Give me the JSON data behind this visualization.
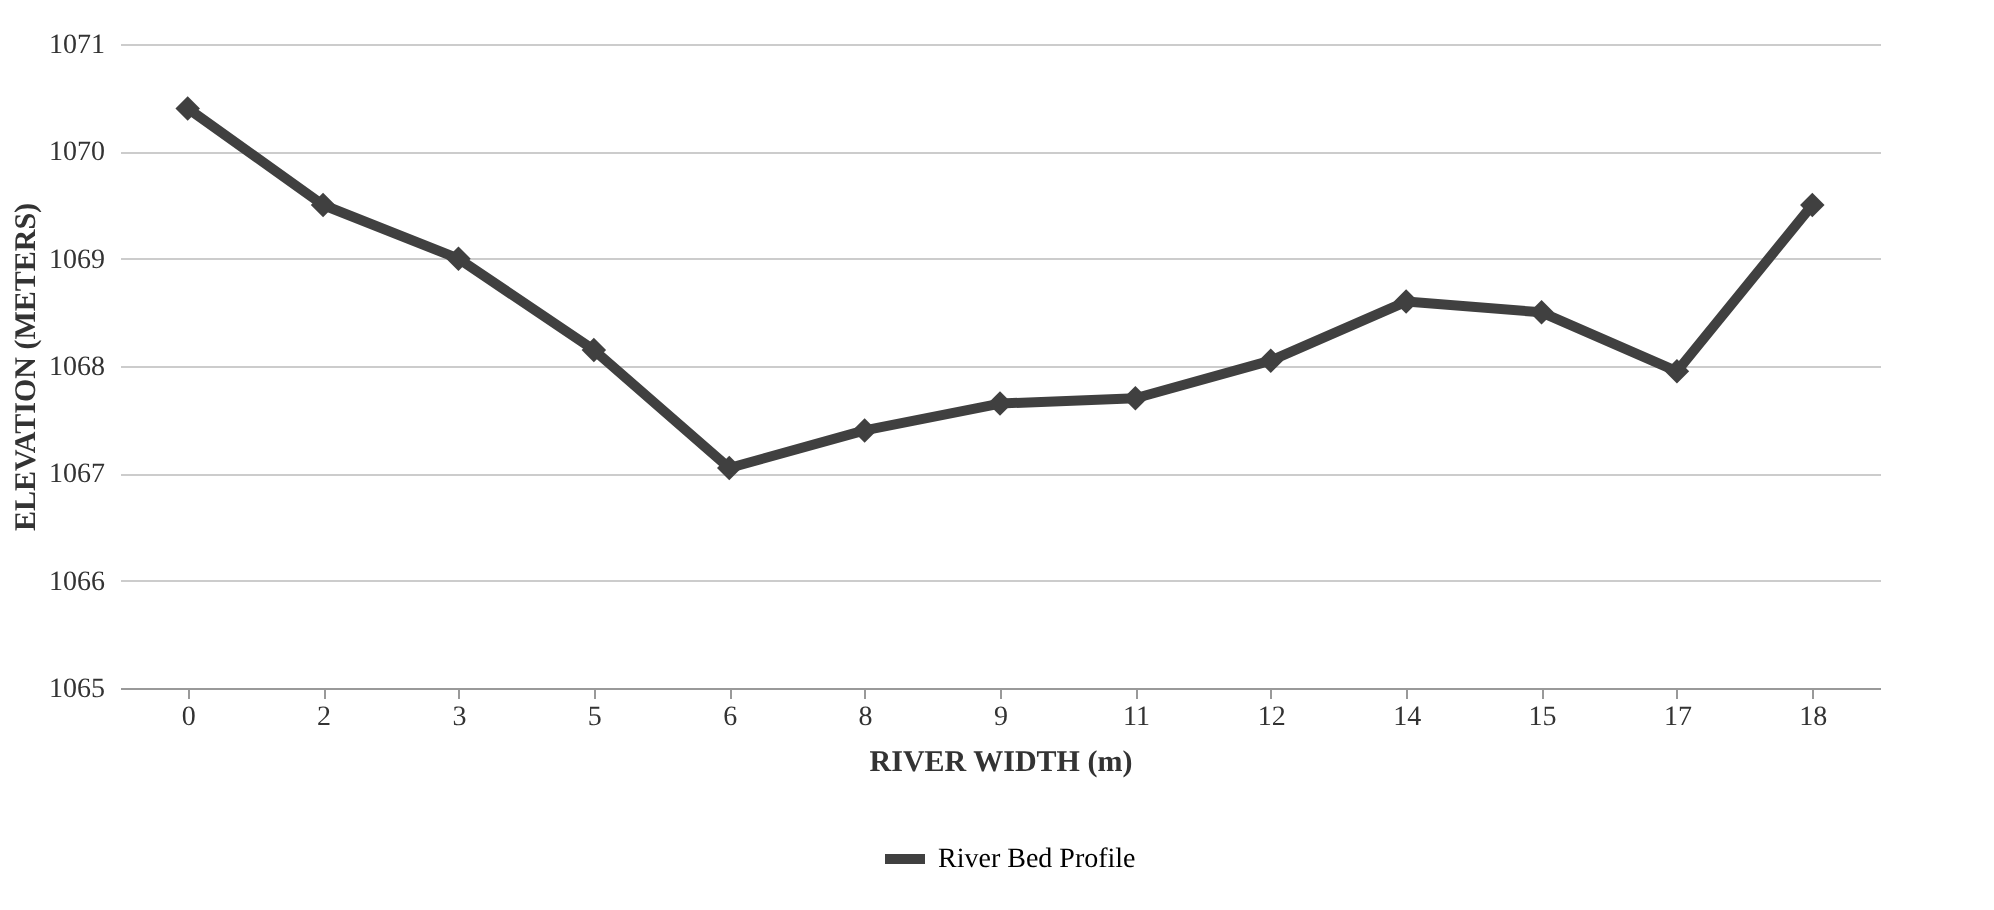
{
  "chart_data": {
    "type": "line",
    "xlabel": "RIVER WIDTH (m)",
    "ylabel": "ELEVATION (METERS)",
    "categories": [
      "0",
      "2",
      "3",
      "5",
      "6",
      "8",
      "9",
      "11",
      "12",
      "14",
      "15",
      "17",
      "18"
    ],
    "series": [
      {
        "name": "River Bed Profile",
        "color": "#404040",
        "values": [
          1070.4,
          1069.5,
          1069.0,
          1068.15,
          1067.05,
          1067.4,
          1067.65,
          1067.7,
          1068.05,
          1068.6,
          1068.5,
          1067.95,
          1069.5
        ]
      }
    ],
    "ylim": [
      1065,
      1071
    ],
    "yticks": [
      1065,
      1066,
      1067,
      1068,
      1069,
      1070,
      1071
    ],
    "grid": "y",
    "legend": "bottom",
    "marker": "diamond",
    "line_style": "solid"
  }
}
